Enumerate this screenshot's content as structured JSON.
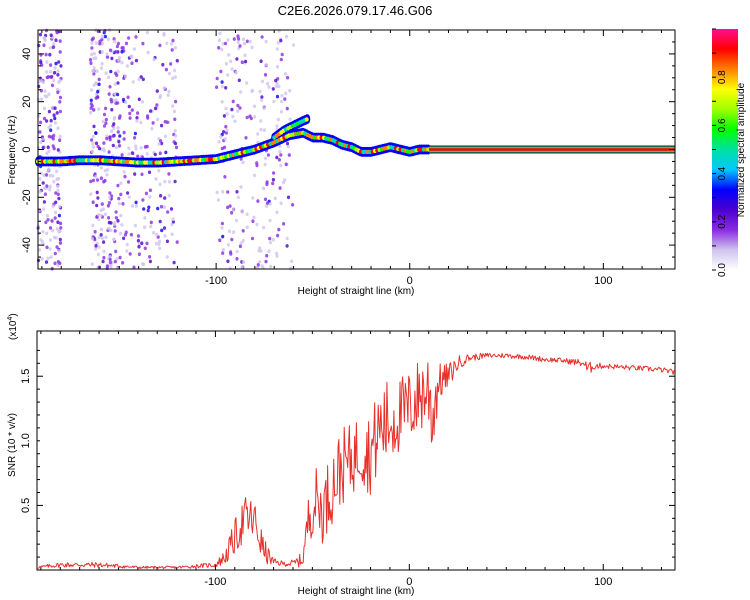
{
  "chart_data": [
    {
      "type": "heatmap",
      "title": "C2E6.2026.079.17.46.G06",
      "xlabel": "Height of straight line (km)",
      "ylabel": "Frequency (Hz)",
      "xlim": [
        -192,
        137
      ],
      "ylim": [
        -50,
        50
      ],
      "xticks": [
        -100,
        0,
        100
      ],
      "yticks": [
        -40,
        -20,
        0,
        20,
        40
      ],
      "xtick_labels": [
        "-100",
        "0",
        "100"
      ],
      "ytick_labels": [
        "-40",
        "-20",
        "0",
        "20",
        "40"
      ],
      "colorbar": {
        "label": "Normalized spectral amplitude",
        "range": [
          0,
          1
        ],
        "ticks": [
          0.0,
          0.2,
          0.4,
          0.6,
          0.8
        ],
        "tick_labels": [
          "0.0",
          "0.2",
          "0.4",
          "0.6",
          "0.8"
        ],
        "colors": [
          "#ffffff",
          "#cfc4ee",
          "#8a2be2",
          "#4b00d0",
          "#0000ff",
          "#00c8ff",
          "#00e0a0",
          "#00ff00",
          "#a0ff00",
          "#ffff00",
          "#ff8000",
          "#ff0000",
          "#ff1090"
        ]
      },
      "ridge": {
        "x": [
          -192,
          -180,
          -170,
          -160,
          -150,
          -140,
          -130,
          -120,
          -110,
          -100,
          -90,
          -80,
          -70,
          -62,
          -55,
          -50,
          -45,
          -40,
          -35,
          -30,
          -25,
          -20,
          -15,
          -10,
          -5,
          0,
          5,
          10,
          137
        ],
        "y": [
          -5,
          -5,
          -4.5,
          -4.5,
          -5,
          -5.5,
          -5.5,
          -5,
          -4.5,
          -4,
          -2,
          0,
          3,
          6,
          7,
          5,
          5,
          4,
          2,
          1,
          -1,
          -1,
          0,
          1,
          0,
          -1,
          0,
          0,
          0
        ]
      },
      "upper_branch": {
        "x": [
          -70,
          -65,
          -60,
          -55,
          -52
        ],
        "y": [
          5,
          8,
          10,
          12,
          13
        ]
      },
      "strong_tone": {
        "x_start": 10,
        "x_end": 137,
        "y": 0
      },
      "noise_bands": [
        [
          -192,
          -180
        ],
        [
          -165,
          -150
        ],
        [
          -150,
          -120
        ],
        [
          -100,
          -60
        ]
      ]
    },
    {
      "type": "line",
      "xlabel": "Height of straight line (km)",
      "ylabel": "SNR (10 * v/v)",
      "multiplier_label": "(x10",
      "multiplier_exp": "4",
      "xlim": [
        -192,
        137
      ],
      "ylim": [
        0,
        1.85
      ],
      "xticks": [
        -100,
        0,
        100
      ],
      "yticks": [
        0.5,
        1.0,
        1.5
      ],
      "xtick_labels": [
        "-100",
        "0",
        "100"
      ],
      "ytick_labels": [
        "0.5",
        "1.0",
        "1.5"
      ],
      "color": "#e8302a",
      "series": [
        {
          "name": "SNR",
          "x": [
            -192,
            -180,
            -160,
            -140,
            -120,
            -100,
            -95,
            -90,
            -85,
            -80,
            -75,
            -70,
            -65,
            -60,
            -55,
            -52,
            -48,
            -45,
            -40,
            -35,
            -30,
            -25,
            -20,
            -15,
            -10,
            -5,
            0,
            5,
            10,
            12,
            15,
            20,
            25,
            30,
            40,
            50,
            60,
            70,
            80,
            90,
            92,
            95,
            100,
            110,
            120,
            130,
            137
          ],
          "y": [
            0.02,
            0.04,
            0.04,
            0.02,
            0.02,
            0.04,
            0.1,
            0.25,
            0.4,
            0.38,
            0.15,
            0.06,
            0.05,
            0.05,
            0.08,
            0.4,
            0.55,
            0.45,
            0.65,
            0.8,
            0.85,
            0.95,
            0.9,
            1.1,
            1.15,
            1.2,
            1.25,
            1.35,
            1.4,
            1.2,
            1.45,
            1.5,
            1.6,
            1.64,
            1.66,
            1.66,
            1.65,
            1.63,
            1.62,
            1.6,
            1.55,
            1.58,
            1.58,
            1.57,
            1.56,
            1.55,
            1.53
          ],
          "amplitude": [
            0.01,
            0.02,
            0.02,
            0.01,
            0.01,
            0.02,
            0.06,
            0.14,
            0.18,
            0.18,
            0.1,
            0.03,
            0.02,
            0.03,
            0.06,
            0.18,
            0.25,
            0.25,
            0.3,
            0.3,
            0.28,
            0.3,
            0.32,
            0.35,
            0.35,
            0.3,
            0.3,
            0.3,
            0.35,
            0.4,
            0.15,
            0.1,
            0.06,
            0.03,
            0.02,
            0.02,
            0.02,
            0.02,
            0.02,
            0.03,
            0.06,
            0.03,
            0.02,
            0.02,
            0.02,
            0.02,
            0.02
          ]
        }
      ]
    }
  ]
}
